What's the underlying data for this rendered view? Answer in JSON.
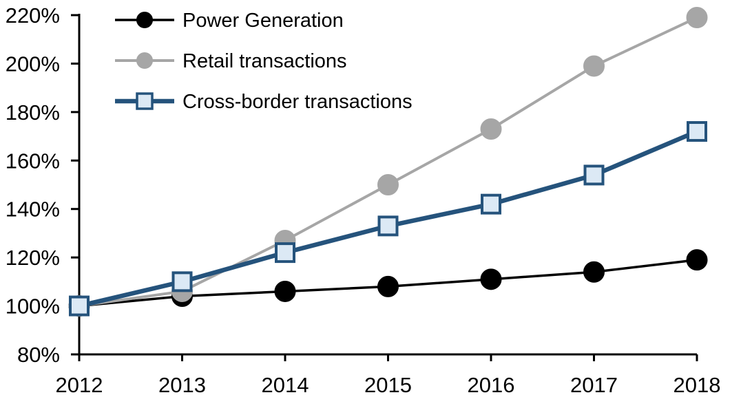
{
  "chart_data": {
    "type": "line",
    "title": "",
    "xlabel": "",
    "ylabel": "",
    "x_categories": [
      "2012",
      "2013",
      "2014",
      "2015",
      "2016",
      "2017",
      "2018"
    ],
    "y_tick_labels": [
      "80%",
      "100%",
      "120%",
      "140%",
      "160%",
      "180%",
      "200%",
      "220%"
    ],
    "ylim": [
      80,
      220
    ],
    "y_step": 20,
    "grid": false,
    "legend_position": "top-left-inside",
    "axis_color": "#000000",
    "background_color": "#ffffff",
    "series": [
      {
        "name": "Power Generation",
        "values": [
          100,
          104,
          106,
          108,
          111,
          114,
          119
        ],
        "line_color": "#000000",
        "line_width": 3.5,
        "marker": "circle",
        "marker_fill": "#000000",
        "marker_stroke": "#000000"
      },
      {
        "name": "Retail transactions",
        "values": [
          100,
          106,
          127,
          150,
          173,
          199,
          219
        ],
        "line_color": "#a6a6a6",
        "line_width": 4,
        "marker": "circle",
        "marker_fill": "#a6a6a6",
        "marker_stroke": "#a6a6a6"
      },
      {
        "name": "Cross-border transactions",
        "values": [
          100,
          110,
          122,
          133,
          142,
          154,
          172
        ],
        "line_color": "#25537c",
        "line_width": 6.5,
        "marker": "square",
        "marker_fill": "#dce9f5",
        "marker_stroke": "#25537c"
      }
    ]
  }
}
